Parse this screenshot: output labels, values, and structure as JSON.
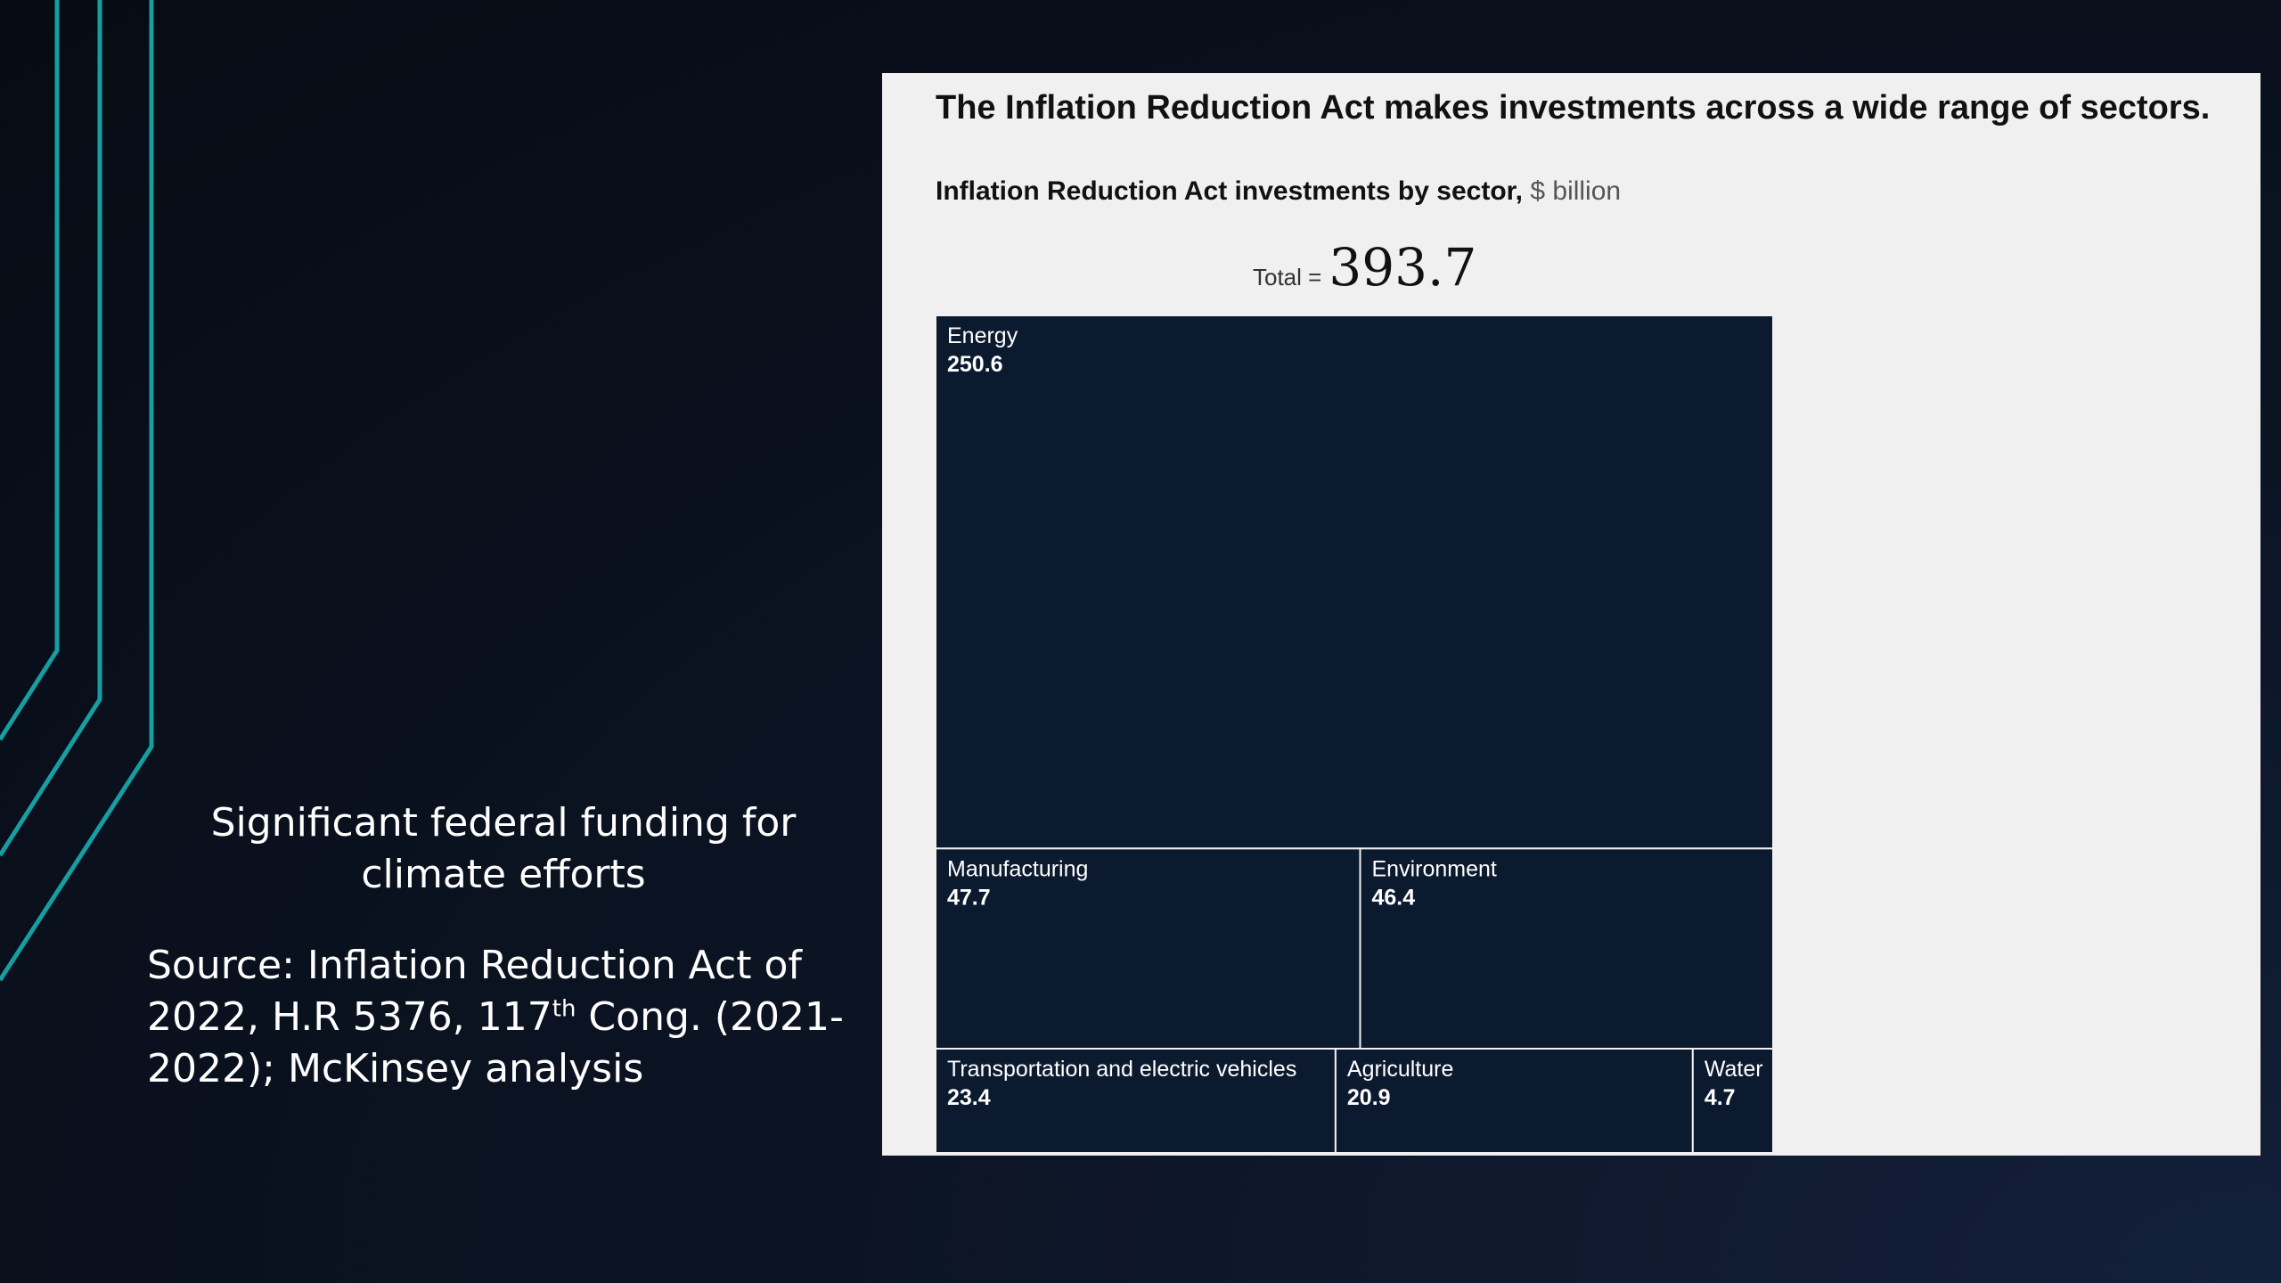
{
  "slide": {
    "caption_title": "Significant federal funding for climate efforts",
    "source_prefix": "Source: Inflation Reduction Act of 2022, H.R 5376, 117",
    "source_sup": "th",
    "source_suffix": " Cong. (2021-2022); McKinsey analysis"
  },
  "colors": {
    "background": "#0a111d",
    "accent_lines": "#159fa3",
    "panel": "#f0f0f0",
    "cell_fill": "#0b1a2e",
    "cell_border": "#f0f0f0"
  },
  "chart_data": {
    "type": "treemap",
    "title": "The Inflation Reduction Act makes investments across a wide range of sectors.",
    "subtitle": "Inflation Reduction Act investments by sector,",
    "unit": "$ billion",
    "total_label": "Total =",
    "total": "393.7",
    "cells": [
      {
        "name": "Energy",
        "value": 250.6
      },
      {
        "name": "Manufacturing",
        "value": 47.7
      },
      {
        "name": "Environment",
        "value": 46.4
      },
      {
        "name": "Transportation and electric vehicles",
        "value": 23.4
      },
      {
        "name": "Agriculture",
        "value": 20.9
      },
      {
        "name": "Water",
        "value": 4.7
      }
    ]
  }
}
